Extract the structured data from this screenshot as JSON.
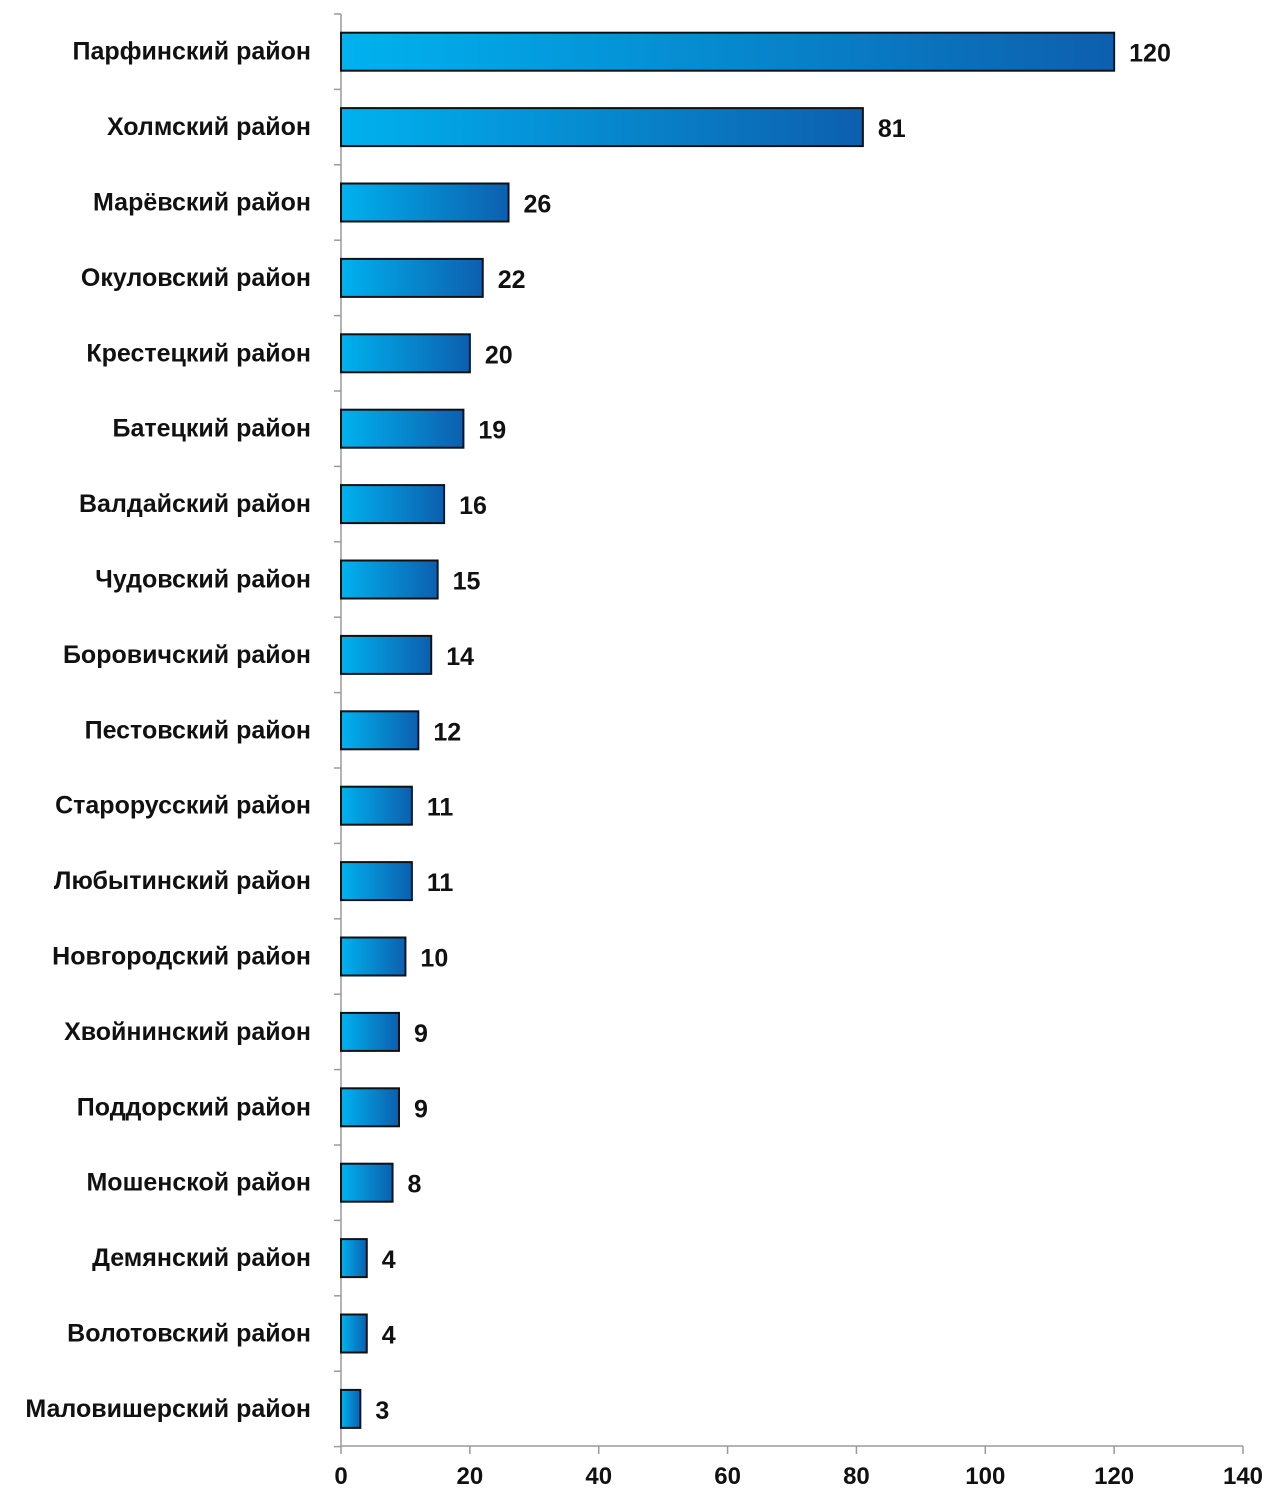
{
  "chart_data": {
    "type": "bar",
    "orientation": "horizontal",
    "categories": [
      "Парфинский район",
      "Холмский район",
      "Марёвский  район",
      "Окуловский  район",
      "Крестецкий район",
      "Батецкий район",
      "Валдайский  район",
      "Чудовский район",
      "Боровичский  район",
      "Пестовский район",
      "Старорусский район",
      "Любытинский  район",
      "Новгородский район",
      "Хвойнинский район",
      "Поддорский район",
      "Мошенской район",
      "Демянский район",
      "Волотовский район",
      "Маловишерский  район"
    ],
    "values": [
      120,
      81,
      26,
      22,
      20,
      19,
      16,
      15,
      14,
      12,
      11,
      11,
      10,
      9,
      9,
      8,
      4,
      4,
      3
    ],
    "value_labels": [
      "120",
      "81",
      "26",
      "22",
      "20",
      "19",
      "16",
      "15",
      "14",
      "12",
      "11",
      "11",
      "10",
      "9",
      "9",
      "8",
      "4",
      "4",
      "3"
    ],
    "xlim": [
      0,
      140
    ],
    "x_ticks": [
      "0",
      "20",
      "40",
      "60",
      "80",
      "100",
      "120",
      "140"
    ],
    "title": "",
    "xlabel": "",
    "ylabel": "",
    "grid": false,
    "legend": "none",
    "colors": {
      "bar_gradient_start": "#00b2ef",
      "bar_gradient_end": "#0d5fae",
      "bar_border": "#111111",
      "axis": "#9a9a9a",
      "text": "#111111"
    }
  }
}
